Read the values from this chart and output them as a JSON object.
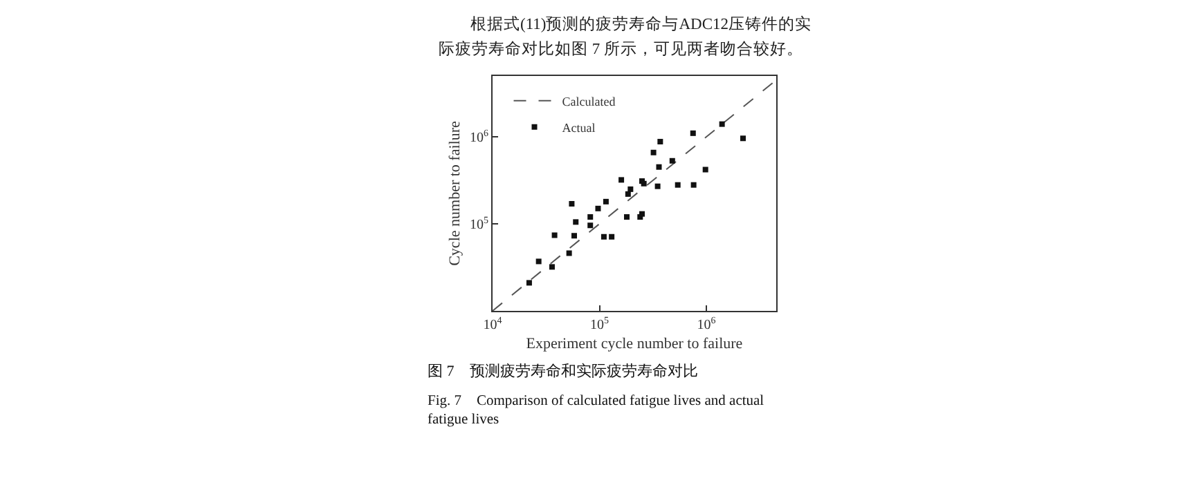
{
  "chart_data": {
    "type": "scatter",
    "title": "图 7　预测疲劳寿命和实际疲劳寿命对比",
    "subtitle": "Fig. 7　Comparison of calculated fatigue lives and actual fatigue lives",
    "annotations": [
      "根据式(11)预测的疲劳寿命与ADC12压铸件的实",
      "际疲劳寿命对比如图 7 所示，可见两者吻合较好。"
    ],
    "xlabel": "Experiment cycle number to failure",
    "ylabel": "Cycle number to failure",
    "log": "xy",
    "xlim": [
      10000,
      4500000
    ],
    "ylim": [
      10000,
      5000000
    ],
    "xticks": [
      {
        "value": 10000,
        "label": "10$^{4}$"
      },
      {
        "value": 100000,
        "label": "10$^{5}$"
      },
      {
        "value": 1000000,
        "label": "10$^{6}$"
      }
    ],
    "yticks": [
      {
        "value": 100000,
        "label": "10$^{5}$"
      },
      {
        "value": 1000000,
        "label": "10$^{6}$"
      }
    ],
    "legend": "top left",
    "grid": false,
    "series": [
      {
        "name": "Calculated",
        "type": "line",
        "line_style": "dashed",
        "marker": "none",
        "color": "#555555",
        "x": [
          10000,
          4500000
        ],
        "values": [
          10000,
          4500000
        ]
      },
      {
        "name": "Actual",
        "type": "scatter",
        "marker": "square",
        "color": "#111111",
        "x": [
          22000,
          27000,
          36000,
          38000,
          52000,
          55000,
          58000,
          60000,
          82000,
          82000,
          97000,
          110000,
          115000,
          130000,
          160000,
          180000,
          185000,
          195000,
          240000,
          250000,
          250000,
          260000,
          320000,
          350000,
          360000,
          370000,
          480000,
          540000,
          750000,
          760000,
          980000,
          1400000,
          2200000
        ],
        "values": [
          21000,
          37000,
          32000,
          74000,
          46000,
          170000,
          73000,
          105000,
          96000,
          120000,
          150000,
          71000,
          180000,
          71000,
          320000,
          120000,
          220000,
          250000,
          120000,
          130000,
          310000,
          290000,
          660000,
          270000,
          450000,
          880000,
          530000,
          280000,
          1100000,
          280000,
          420000,
          1400000,
          960000
        ]
      }
    ]
  }
}
